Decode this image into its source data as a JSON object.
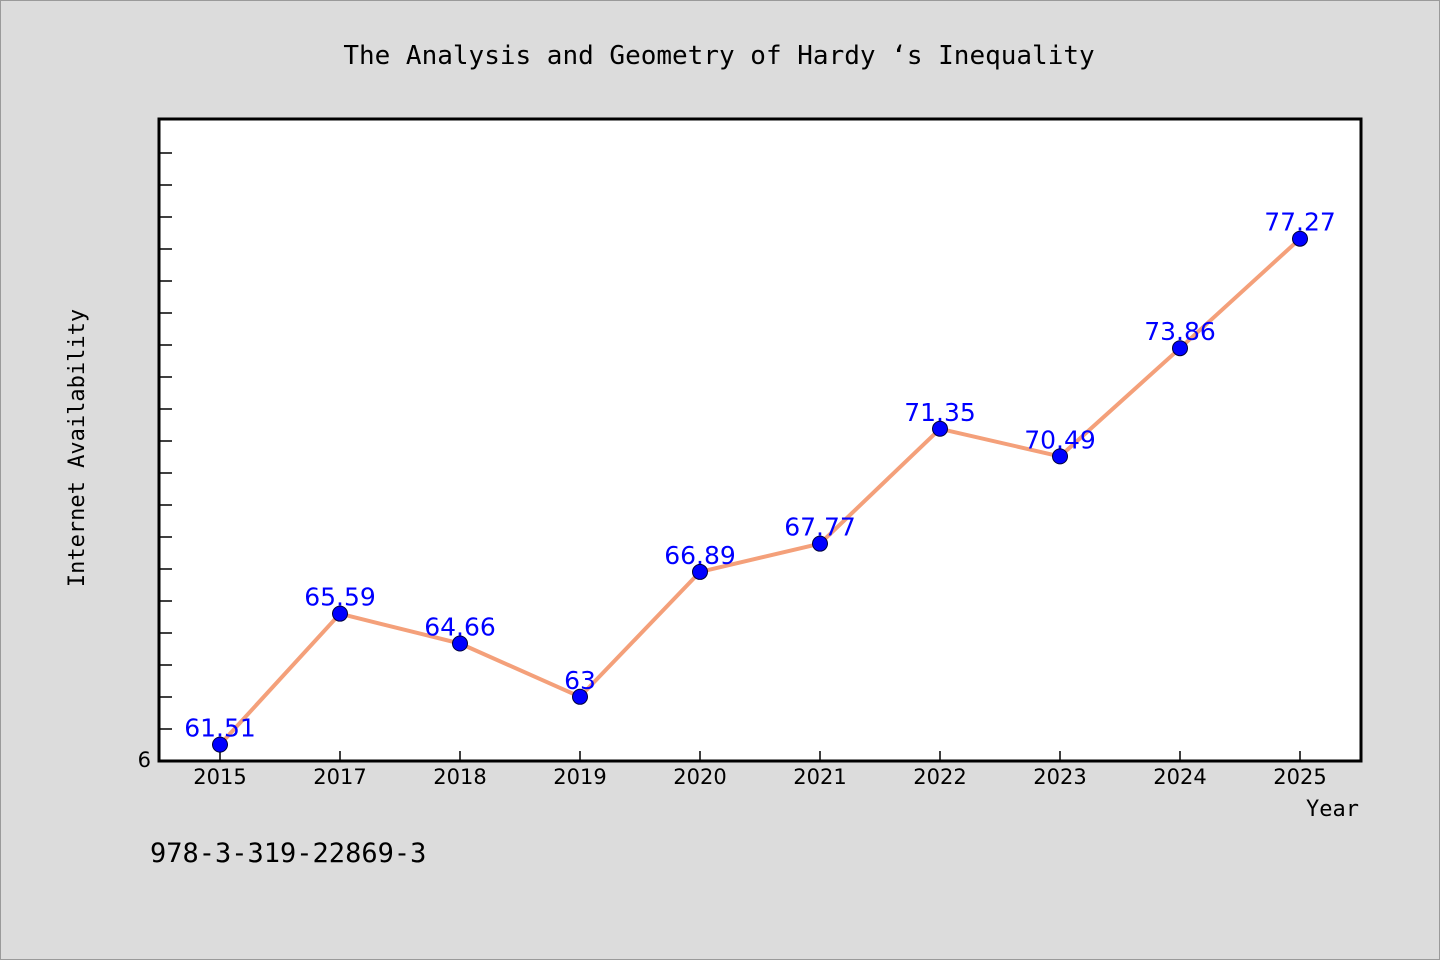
{
  "chart_data": {
    "type": "line",
    "title": "The Analysis and Geometry of Hardy ‘s Inequality",
    "xlabel": "Year",
    "ylabel": "Internet Availability",
    "categories": [
      "2015",
      "2017",
      "2018",
      "2019",
      "2020",
      "2021",
      "2022",
      "2023",
      "2024",
      "2025"
    ],
    "series": [
      {
        "values": [
          61.51,
          65.59,
          64.66,
          63,
          66.89,
          67.77,
          71.35,
          70.49,
          73.86,
          77.27
        ],
        "labels": [
          "61.51",
          "65.59",
          "64.66",
          "63",
          "66.89",
          "67.77",
          "71.35",
          "70.49",
          "73.86",
          "77.27"
        ]
      }
    ],
    "ylim": [
      61,
      81
    ],
    "y_tick_labels": [
      "6"
    ],
    "grid": false,
    "line_color": "#f4a07a",
    "marker_color": "#0000ff",
    "label_color": "#0000ff"
  },
  "footer": {
    "isbn": "978-3-319-22869-3"
  }
}
